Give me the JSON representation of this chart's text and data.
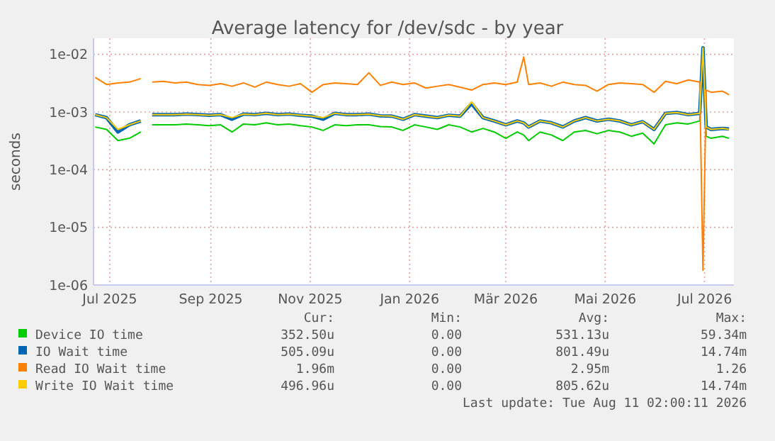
{
  "chart_data": {
    "type": "line",
    "title": "Average latency for /dev/sdc - by year",
    "ylabel": "seconds",
    "log": "y",
    "grid": true,
    "legend": "bottom",
    "marker": "none",
    "line_style": "solid",
    "x": [
      "2025-06-22",
      "2025-06-29",
      "2025-07-06",
      "2025-07-13",
      "2025-07-20",
      "2025-07-24",
      "2025-07-27",
      "2025-08-03",
      "2025-08-10",
      "2025-08-17",
      "2025-08-24",
      "2025-08-31",
      "2025-09-07",
      "2025-09-14",
      "2025-09-21",
      "2025-09-28",
      "2025-10-05",
      "2025-10-12",
      "2025-10-19",
      "2025-10-26",
      "2025-11-02",
      "2025-11-09",
      "2025-11-16",
      "2025-11-23",
      "2025-11-30",
      "2025-12-07",
      "2025-12-14",
      "2025-12-21",
      "2025-12-28",
      "2026-01-04",
      "2026-01-11",
      "2026-01-18",
      "2026-01-25",
      "2026-02-01",
      "2026-02-08",
      "2026-02-15",
      "2026-02-22",
      "2026-03-01",
      "2026-03-08",
      "2026-03-12",
      "2026-03-15",
      "2026-03-22",
      "2026-03-29",
      "2026-04-05",
      "2026-04-12",
      "2026-04-19",
      "2026-04-26",
      "2026-05-03",
      "2026-05-10",
      "2026-05-17",
      "2026-05-24",
      "2026-05-31",
      "2026-06-07",
      "2026-06-14",
      "2026-06-21",
      "2026-06-28",
      "2026-06-30",
      "2026-07-02",
      "2026-07-05",
      "2026-07-12",
      "2026-07-16"
    ],
    "xlim": [
      "2025-06-21",
      "2026-07-19"
    ],
    "xticks": [
      {
        "value": "2025-07-01",
        "label": "Jul 2025"
      },
      {
        "value": "2025-09-01",
        "label": "Sep 2025"
      },
      {
        "value": "2025-11-01",
        "label": "Nov 2025"
      },
      {
        "value": "2026-01-01",
        "label": "Jan 2026"
      },
      {
        "value": "2026-03-01",
        "label": "Mär 2026"
      },
      {
        "value": "2026-05-01",
        "label": "Mai 2026"
      },
      {
        "value": "2026-07-01",
        "label": "Jul 2026"
      }
    ],
    "ylim": [
      1e-06,
      0.019
    ],
    "yticks": [
      {
        "value": 1e-06,
        "label": "1e-06"
      },
      {
        "value": 1e-05,
        "label": "1e-05"
      },
      {
        "value": 0.0001,
        "label": "1e-04"
      },
      {
        "value": 0.001,
        "label": "1e-03"
      },
      {
        "value": 0.01,
        "label": "1e-02"
      }
    ],
    "series": [
      {
        "name": "Device IO time",
        "color": "#00cc00",
        "values": [
          0.00055,
          0.0005,
          0.00032,
          0.00035,
          0.00045,
          null,
          0.0006,
          0.0006,
          0.0006,
          0.00062,
          0.0006,
          0.00058,
          0.0006,
          0.00045,
          0.00062,
          0.0006,
          0.00065,
          0.0006,
          0.00062,
          0.00058,
          0.00055,
          0.00048,
          0.0006,
          0.00058,
          0.0006,
          0.0006,
          0.00056,
          0.00055,
          0.00048,
          0.0006,
          0.00055,
          0.0005,
          0.0006,
          0.00055,
          0.00045,
          0.00052,
          0.00045,
          0.00035,
          0.00045,
          0.0004,
          0.00032,
          0.00045,
          0.0004,
          0.00032,
          0.00045,
          0.00048,
          0.00042,
          0.00048,
          0.00045,
          0.00038,
          0.00043,
          0.00028,
          0.0006,
          0.00065,
          0.00062,
          0.0007,
          0.012,
          0.00038,
          0.00035,
          0.00038,
          0.00035
        ]
      },
      {
        "name": "IO Wait time",
        "color": "#0066b3",
        "values": [
          0.0009,
          0.0008,
          0.00045,
          0.0006,
          0.0007,
          null,
          0.0009,
          0.0009,
          0.0009,
          0.00092,
          0.0009,
          0.00088,
          0.0009,
          0.00075,
          0.00092,
          0.0009,
          0.00095,
          0.0009,
          0.00092,
          0.00088,
          0.00085,
          0.00075,
          0.00095,
          0.0009,
          0.0009,
          0.00092,
          0.00086,
          0.00085,
          0.00075,
          0.0009,
          0.00085,
          0.0008,
          0.00088,
          0.00085,
          0.0014,
          0.0008,
          0.0007,
          0.0006,
          0.0007,
          0.00065,
          0.00055,
          0.0007,
          0.00065,
          0.00055,
          0.0007,
          0.0008,
          0.0007,
          0.00075,
          0.0007,
          0.0006,
          0.00068,
          0.0005,
          0.00095,
          0.00098,
          0.0009,
          0.00095,
          0.013,
          0.00055,
          0.0005,
          0.00052,
          0.00051
        ]
      },
      {
        "name": "Read IO Wait time",
        "color": "#ff8000",
        "values": [
          0.004,
          0.003,
          0.0032,
          0.0033,
          0.0038,
          null,
          0.0033,
          0.0034,
          0.0032,
          0.0033,
          0.003,
          0.0029,
          0.0031,
          0.0028,
          0.0032,
          0.0027,
          0.0033,
          0.003,
          0.0028,
          0.0031,
          0.0022,
          0.003,
          0.0032,
          0.0031,
          0.003,
          0.0048,
          0.0029,
          0.0033,
          0.003,
          0.0032,
          0.0026,
          0.0028,
          0.003,
          0.0027,
          0.0024,
          0.003,
          0.0032,
          0.003,
          0.0033,
          0.009,
          0.003,
          0.0032,
          0.0028,
          0.0033,
          0.003,
          0.0029,
          0.0023,
          0.003,
          0.0032,
          0.0031,
          0.003,
          0.0022,
          0.0034,
          0.0031,
          0.0036,
          0.0033,
          1.8e-06,
          0.0024,
          0.0022,
          0.0023,
          0.002
        ]
      },
      {
        "name": "Write IO Wait time",
        "color": "#ffcc00",
        "values": [
          0.0009,
          0.0008,
          0.0005,
          0.0006,
          0.0007,
          null,
          0.0009,
          0.0009,
          0.0009,
          0.00092,
          0.0009,
          0.00088,
          0.0009,
          0.0008,
          0.00092,
          0.0009,
          0.00095,
          0.0009,
          0.00092,
          0.00088,
          0.00085,
          0.0008,
          0.00095,
          0.0009,
          0.0009,
          0.00092,
          0.00086,
          0.00085,
          0.00075,
          0.0009,
          0.00085,
          0.0008,
          0.00088,
          0.00085,
          0.0015,
          0.0008,
          0.0007,
          0.0006,
          0.0007,
          0.00065,
          0.00055,
          0.0007,
          0.00065,
          0.00055,
          0.0007,
          0.0008,
          0.0007,
          0.00075,
          0.0007,
          0.0006,
          0.00068,
          0.0005,
          0.00095,
          0.00098,
          0.0009,
          0.00095,
          0.013,
          0.00055,
          0.0005,
          0.00052,
          0.0005
        ]
      }
    ],
    "annotations": [
      "Cur:",
      "Min:",
      "Avg:",
      "Max:",
      "352.50u",
      "0.00",
      "531.13u",
      "59.34m",
      "505.09u",
      "0.00",
      "801.49u",
      "14.74m",
      "1.96m",
      "0.00",
      "2.95m",
      "1.26",
      "496.96u",
      "0.00",
      "805.62u",
      "14.74m",
      "Last update: Tue Aug 11 02:00:11 2026"
    ]
  }
}
